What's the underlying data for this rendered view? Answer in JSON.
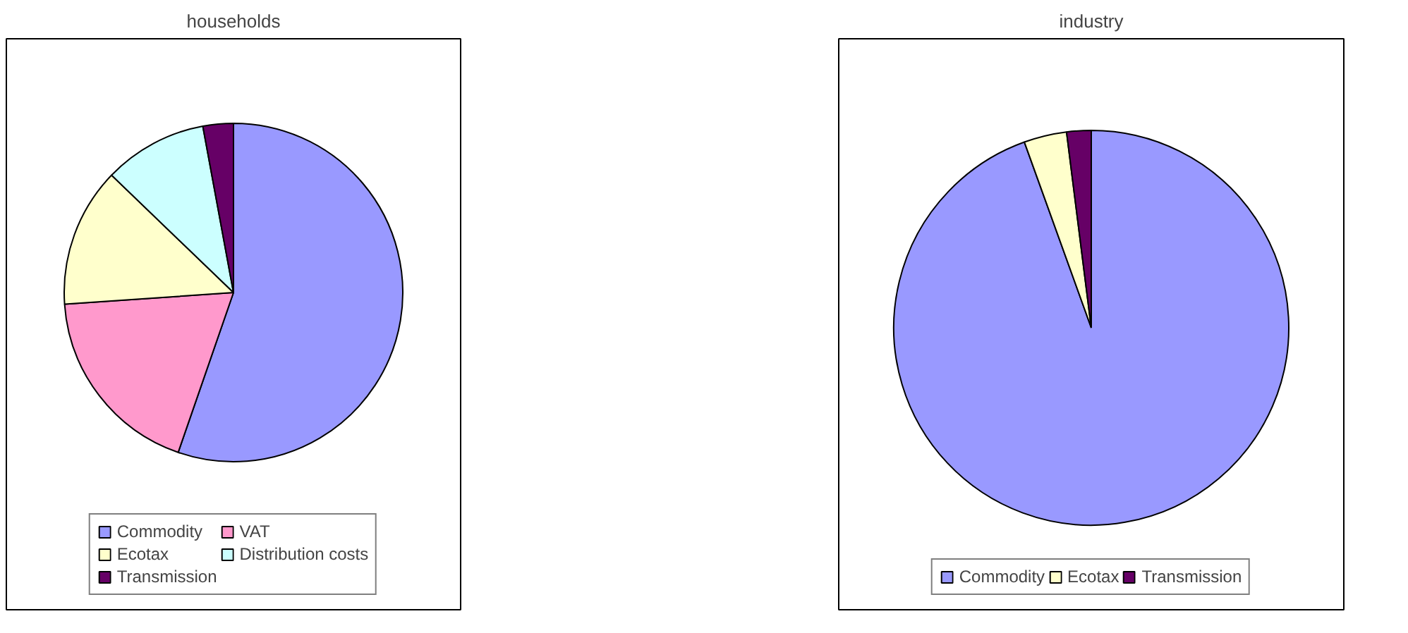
{
  "chart_data": [
    {
      "type": "pie",
      "title": "households",
      "categories": [
        "Commodity",
        "VAT",
        "Ecotax",
        "Distribution costs",
        "Transmission"
      ],
      "values": [
        55.3,
        18.6,
        13.3,
        9.9,
        2.9
      ],
      "colors": [
        "#9999ff",
        "#ff99cc",
        "#ffffcc",
        "#ccffff",
        "#660066"
      ],
      "legend": "bottom"
    },
    {
      "type": "pie",
      "title": "industry",
      "categories": [
        "Commodity",
        "Ecotax",
        "Transmission"
      ],
      "values": [
        94.5,
        3.5,
        2.0
      ],
      "colors": [
        "#9999ff",
        "#ffffcc",
        "#660066"
      ],
      "legend": "bottom"
    }
  ]
}
